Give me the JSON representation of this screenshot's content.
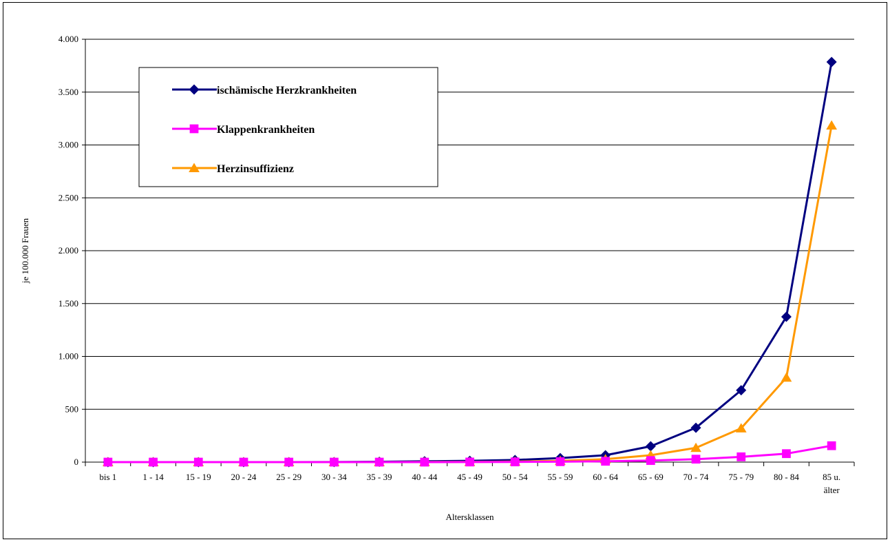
{
  "chart_data": {
    "type": "line",
    "title": "",
    "xlabel": "Altersklassen",
    "ylabel": "je 100.000 Frauen",
    "ylim": [
      0,
      4000
    ],
    "y_ticks": [
      0,
      500,
      1000,
      1500,
      2000,
      2500,
      3000,
      3500,
      4000
    ],
    "y_tick_labels": [
      "0",
      "500",
      "1.000",
      "1.500",
      "2.000",
      "2.500",
      "3.000",
      "3.500",
      "4.000"
    ],
    "grid": true,
    "legend_position": "top-left",
    "categories": [
      [
        "bis 1"
      ],
      [
        "1  - 14"
      ],
      [
        "15 - 19"
      ],
      [
        "20 - 24"
      ],
      [
        "25 - 29"
      ],
      [
        "30 - 34"
      ],
      [
        "35 - 39"
      ],
      [
        "40 - 44"
      ],
      [
        "45 - 49"
      ],
      [
        "50 - 54"
      ],
      [
        "55 - 59"
      ],
      [
        "60 - 64"
      ],
      [
        "65 - 69"
      ],
      [
        "70 - 74"
      ],
      [
        "75 - 79"
      ],
      [
        "80 - 84"
      ],
      [
        "85 u.",
        "älter"
      ]
    ],
    "series": [
      {
        "name": "ischämische Herzkrankheiten",
        "color": "#000080",
        "marker": "diamond",
        "values": [
          0,
          0,
          0,
          0,
          0,
          1,
          3,
          8,
          12,
          20,
          38,
          65,
          150,
          325,
          680,
          1375,
          3785
        ]
      },
      {
        "name": "Klappenkrankheiten",
        "color": "#FF00FF",
        "marker": "square",
        "values": [
          0,
          0,
          0,
          0,
          0,
          0,
          0,
          0,
          1,
          2,
          4,
          8,
          15,
          28,
          50,
          80,
          155
        ]
      },
      {
        "name": "Herzinsuffizienz",
        "color": "#FF9900",
        "marker": "triangle",
        "values": [
          0,
          0,
          0,
          0,
          0,
          0,
          0,
          1,
          2,
          5,
          12,
          28,
          65,
          135,
          320,
          800,
          3185
        ]
      }
    ]
  }
}
